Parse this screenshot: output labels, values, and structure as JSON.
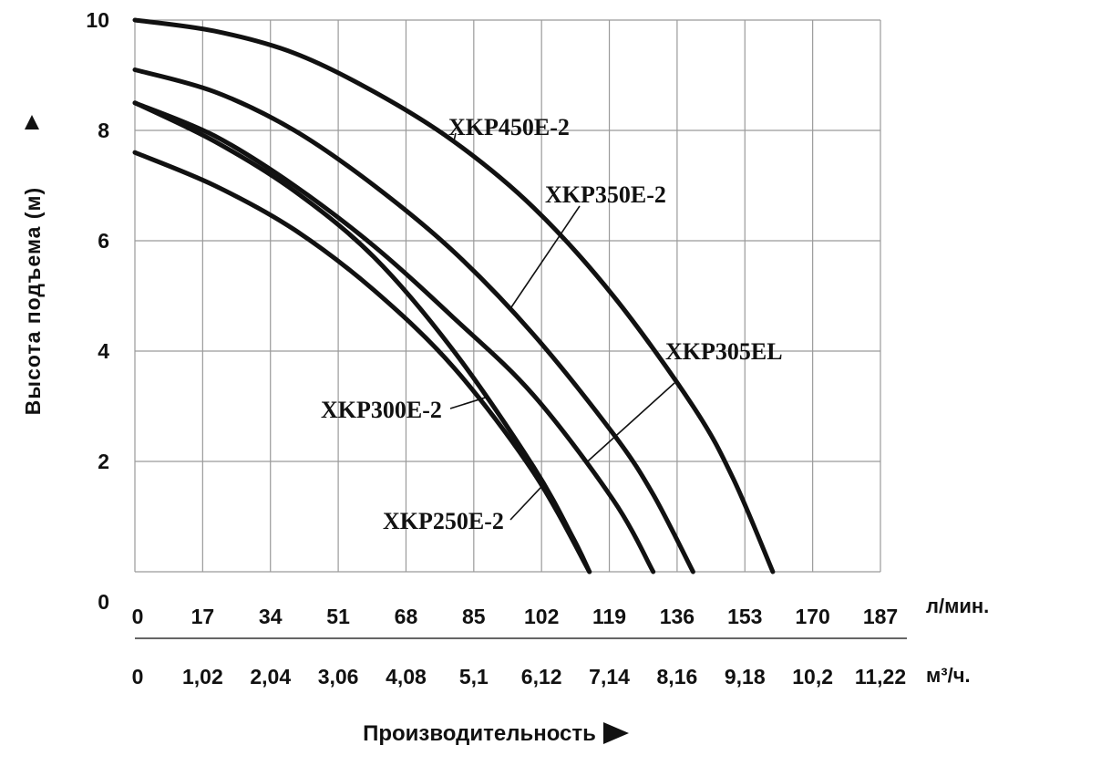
{
  "chart_data": {
    "type": "line",
    "ylabel": "Высота подъема (м)",
    "xlabel": "Производительность",
    "y_ticks": [
      "0",
      "2",
      "4",
      "6",
      "8",
      "10"
    ],
    "x_ticks_lmin": [
      "0",
      "17",
      "34",
      "51",
      "68",
      "85",
      "102",
      "119",
      "136",
      "153",
      "170",
      "187"
    ],
    "x_ticks_m3h": [
      "0",
      "1,02",
      "2,04",
      "3,06",
      "4,08",
      "5,1",
      "6,12",
      "7,14",
      "8,16",
      "9,18",
      "10,2",
      "11,22"
    ],
    "x_unit_lmin": "л/мин.",
    "x_unit_m3h": "м³/ч.",
    "xlim": [
      0,
      187
    ],
    "ylim": [
      0,
      10
    ],
    "grid": true,
    "series": [
      {
        "name": "XKP450E-2",
        "x": [
          0,
          20,
          40,
          60,
          80,
          100,
          120,
          140,
          150,
          160
        ],
        "y": [
          10.0,
          9.8,
          9.4,
          8.7,
          7.8,
          6.6,
          5.0,
          3.0,
          1.7,
          0.0
        ]
      },
      {
        "name": "XKP350E-2",
        "x": [
          0,
          20,
          40,
          60,
          80,
          100,
          120,
          130,
          140
        ],
        "y": [
          9.1,
          8.7,
          8.0,
          7.0,
          5.8,
          4.3,
          2.5,
          1.4,
          0.0
        ]
      },
      {
        "name": "XKP305EL",
        "x": [
          0,
          20,
          40,
          60,
          80,
          100,
          120,
          130
        ],
        "y": [
          8.5,
          7.9,
          7.0,
          5.9,
          4.6,
          3.2,
          1.3,
          0.0
        ]
      },
      {
        "name": "XKP300E-2",
        "x": [
          0,
          20,
          40,
          60,
          80,
          100,
          110,
          114
        ],
        "y": [
          8.5,
          7.8,
          6.9,
          5.7,
          4.0,
          1.9,
          0.6,
          0.0
        ]
      },
      {
        "name": "XKP250E-2",
        "x": [
          0,
          20,
          40,
          60,
          80,
          100,
          114
        ],
        "y": [
          7.6,
          7.0,
          6.2,
          5.1,
          3.7,
          1.8,
          0.0
        ]
      }
    ]
  }
}
